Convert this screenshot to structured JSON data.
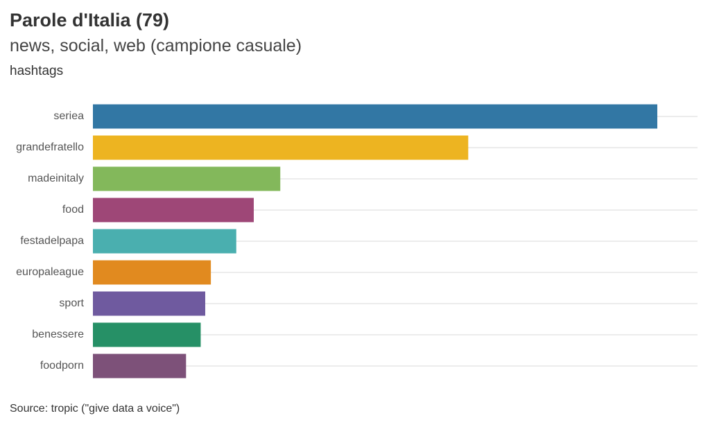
{
  "header": {
    "title": "Parole d'Italia (79)",
    "subtitle": "news, social, web (campione casuale)",
    "caption": "hashtags"
  },
  "footer": {
    "source": "Source: tropic (\"give data a voice\")"
  },
  "chart_data": {
    "type": "bar",
    "orientation": "horizontal",
    "categories": [
      "seriea",
      "grandefratello",
      "madeinitaly",
      "food",
      "festadelpapa",
      "europaleague",
      "sport",
      "benessere",
      "foodporn"
    ],
    "values": [
      100,
      66.5,
      33.2,
      28.5,
      25.4,
      20.9,
      19.9,
      19.1,
      16.5
    ],
    "colors": [
      "#3277a4",
      "#edb421",
      "#83b85b",
      "#9e4777",
      "#4aafaf",
      "#e18a1f",
      "#6f5a9f",
      "#269066",
      "#7d5179"
    ],
    "xlim": [
      0,
      100
    ],
    "grid": true,
    "legend": "none"
  }
}
